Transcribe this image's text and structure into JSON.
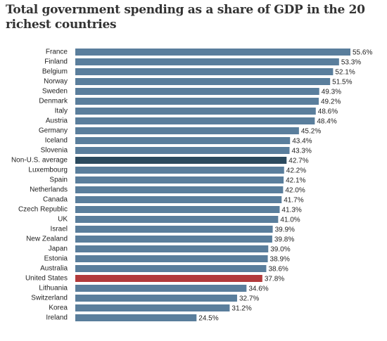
{
  "chart_data": {
    "type": "hbar",
    "title": "Total government spending as a share of GDP in the 20 richest countries",
    "categories": [
      "France",
      "Finland",
      "Belgium",
      "Norway",
      "Sweden",
      "Denmark",
      "Italy",
      "Austria",
      "Germany",
      "Iceland",
      "Slovenia",
      "Non-U.S. average",
      "Luxembourg",
      "Spain",
      "Netherlands",
      "Canada",
      "Czech Republic",
      "UK",
      "Israel",
      "New Zealand",
      "Japan",
      "Estonia",
      "Australia",
      "United States",
      "Lithuania",
      "Switzerland",
      "Korea",
      "Ireland"
    ],
    "values": [
      55.6,
      53.3,
      52.1,
      51.5,
      49.3,
      49.2,
      48.6,
      48.4,
      45.2,
      43.4,
      43.3,
      42.7,
      42.2,
      42.1,
      42.0,
      41.7,
      41.3,
      41.0,
      39.9,
      39.8,
      39.0,
      38.9,
      38.6,
      37.8,
      34.6,
      32.7,
      31.2,
      24.5
    ],
    "value_labels": [
      "55.6%",
      "53.3%",
      "52.1%",
      "51.5%",
      "49.3%",
      "49.2%",
      "48.6%",
      "48.4%",
      "45.2%",
      "43.4%",
      "43.3%",
      "42.7%",
      "42.2%",
      "42.1%",
      "42.0%",
      "41.7%",
      "41.3%",
      "41.0%",
      "39.9%",
      "39.8%",
      "39.0%",
      "38.9%",
      "38.6%",
      "37.8%",
      "34.6%",
      "32.7%",
      "31.2%",
      "24.5%"
    ],
    "colors": [
      "#5a7e9c",
      "#5a7e9c",
      "#5a7e9c",
      "#5a7e9c",
      "#5a7e9c",
      "#5a7e9c",
      "#5a7e9c",
      "#5a7e9c",
      "#5a7e9c",
      "#5a7e9c",
      "#5a7e9c",
      "#2b4a5e",
      "#5a7e9c",
      "#5a7e9c",
      "#5a7e9c",
      "#5a7e9c",
      "#5a7e9c",
      "#5a7e9c",
      "#5a7e9c",
      "#5a7e9c",
      "#5a7e9c",
      "#5a7e9c",
      "#5a7e9c",
      "#b23a3b",
      "#5a7e9c",
      "#5a7e9c",
      "#5a7e9c",
      "#5a7e9c"
    ]
  }
}
